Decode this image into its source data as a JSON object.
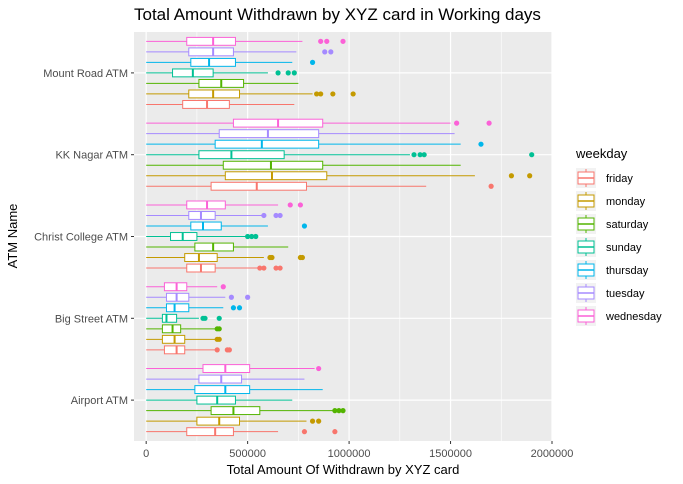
{
  "chart_data": {
    "type": "boxplot",
    "orientation": "horizontal",
    "title": "Total Amount Withdrawn by XYZ card in Working days",
    "xlabel": "Total Amount Of Withdrawn by XYZ card",
    "ylabel": "ATM Name",
    "xlim": [
      -60000,
      2000000
    ],
    "x_ticks": [
      0,
      500000,
      1000000,
      1500000,
      2000000
    ],
    "x_tick_labels": [
      "0",
      "500000",
      "1000000",
      "1500000",
      "2000000"
    ],
    "categories": [
      "Mount Road ATM",
      "KK Nagar ATM",
      "Christ College ATM",
      "Big Street ATM",
      "Airport ATM"
    ],
    "grid": true,
    "legend": {
      "title": "weekday",
      "position": "right"
    },
    "series": [
      {
        "name": "friday",
        "color": "#F8766D",
        "boxes": [
          {
            "category": "Mount Road ATM",
            "whisker_low": 0,
            "q1": 180000,
            "median": 300000,
            "q3": 410000,
            "whisker_high": 730000,
            "outliers": []
          },
          {
            "category": "KK Nagar ATM",
            "whisker_low": 0,
            "q1": 320000,
            "median": 545000,
            "q3": 790000,
            "whisker_high": 1380000,
            "outliers": [
              1700000
            ]
          },
          {
            "category": "Christ College ATM",
            "whisker_low": 0,
            "q1": 200000,
            "median": 270000,
            "q3": 340000,
            "whisker_high": 550000,
            "outliers": [
              560000,
              580000,
              640000,
              660000
            ]
          },
          {
            "category": "Big Street ATM",
            "whisker_low": 0,
            "q1": 90000,
            "median": 150000,
            "q3": 190000,
            "whisker_high": 340000,
            "outliers": [
              350000,
              400000,
              410000
            ]
          },
          {
            "category": "Airport ATM",
            "whisker_low": 0,
            "q1": 200000,
            "median": 340000,
            "q3": 430000,
            "whisker_high": 650000,
            "outliers": [
              780000,
              930000
            ]
          }
        ]
      },
      {
        "name": "monday",
        "color": "#C49A00",
        "boxes": [
          {
            "category": "Mount Road ATM",
            "whisker_low": 0,
            "q1": 210000,
            "median": 330000,
            "q3": 460000,
            "whisker_high": 820000,
            "outliers": [
              840000,
              860000,
              920000,
              1020000
            ]
          },
          {
            "category": "KK Nagar ATM",
            "whisker_low": 0,
            "q1": 390000,
            "median": 620000,
            "q3": 890000,
            "whisker_high": 1620000,
            "outliers": [
              1800000,
              1890000
            ]
          },
          {
            "category": "Christ College ATM",
            "whisker_low": 0,
            "q1": 190000,
            "median": 260000,
            "q3": 350000,
            "whisker_high": 580000,
            "outliers": [
              610000,
              620000,
              760000,
              770000
            ]
          },
          {
            "category": "Big Street ATM",
            "whisker_low": 0,
            "q1": 80000,
            "median": 140000,
            "q3": 190000,
            "whisker_high": 340000,
            "outliers": [
              350000,
              360000
            ]
          },
          {
            "category": "Airport ATM",
            "whisker_low": 0,
            "q1": 250000,
            "median": 360000,
            "q3": 460000,
            "whisker_high": 790000,
            "outliers": [
              820000,
              850000
            ]
          }
        ]
      },
      {
        "name": "saturday",
        "color": "#53B400",
        "boxes": [
          {
            "category": "Mount Road ATM",
            "whisker_low": 0,
            "q1": 260000,
            "median": 370000,
            "q3": 480000,
            "whisker_high": 750000,
            "outliers": []
          },
          {
            "category": "KK Nagar ATM",
            "whisker_low": 0,
            "q1": 380000,
            "median": 615000,
            "q3": 870000,
            "whisker_high": 1550000,
            "outliers": []
          },
          {
            "category": "Christ College ATM",
            "whisker_low": 0,
            "q1": 240000,
            "median": 330000,
            "q3": 430000,
            "whisker_high": 700000,
            "outliers": []
          },
          {
            "category": "Big Street ATM",
            "whisker_low": 0,
            "q1": 80000,
            "median": 130000,
            "q3": 170000,
            "whisker_high": 340000,
            "outliers": [
              350000,
              360000
            ]
          },
          {
            "category": "Airport ATM",
            "whisker_low": 0,
            "q1": 320000,
            "median": 430000,
            "q3": 560000,
            "whisker_high": 920000,
            "outliers": [
              930000,
              950000,
              970000
            ]
          }
        ]
      },
      {
        "name": "sunday",
        "color": "#00C094",
        "boxes": [
          {
            "category": "Mount Road ATM",
            "whisker_low": 0,
            "q1": 130000,
            "median": 230000,
            "q3": 330000,
            "whisker_high": 600000,
            "outliers": [
              650000,
              700000,
              730000
            ]
          },
          {
            "category": "KK Nagar ATM",
            "whisker_low": 0,
            "q1": 260000,
            "median": 420000,
            "q3": 680000,
            "whisker_high": 1300000,
            "outliers": [
              1320000,
              1350000,
              1370000,
              1900000
            ]
          },
          {
            "category": "Christ College ATM",
            "whisker_low": 0,
            "q1": 120000,
            "median": 180000,
            "q3": 250000,
            "whisker_high": 490000,
            "outliers": [
              500000,
              520000,
              540000
            ]
          },
          {
            "category": "Big Street ATM",
            "whisker_low": 0,
            "q1": 80000,
            "median": 100000,
            "q3": 150000,
            "whisker_high": 260000,
            "outliers": [
              280000,
              290000,
              360000
            ]
          },
          {
            "category": "Airport ATM",
            "whisker_low": 0,
            "q1": 250000,
            "median": 350000,
            "q3": 440000,
            "whisker_high": 720000,
            "outliers": []
          }
        ]
      },
      {
        "name": "thursday",
        "color": "#00B6EB",
        "boxes": [
          {
            "category": "Mount Road ATM",
            "whisker_low": 0,
            "q1": 220000,
            "median": 310000,
            "q3": 440000,
            "whisker_high": 720000,
            "outliers": [
              820000
            ]
          },
          {
            "category": "KK Nagar ATM",
            "whisker_low": 0,
            "q1": 340000,
            "median": 570000,
            "q3": 850000,
            "whisker_high": 1550000,
            "outliers": [
              1650000
            ]
          },
          {
            "category": "Christ College ATM",
            "whisker_low": 0,
            "q1": 220000,
            "median": 280000,
            "q3": 370000,
            "whisker_high": 600000,
            "outliers": [
              780000
            ]
          },
          {
            "category": "Big Street ATM",
            "whisker_low": 0,
            "q1": 100000,
            "median": 140000,
            "q3": 210000,
            "whisker_high": 380000,
            "outliers": [
              430000,
              460000
            ]
          },
          {
            "category": "Airport ATM",
            "whisker_low": 0,
            "q1": 240000,
            "median": 390000,
            "q3": 510000,
            "whisker_high": 870000,
            "outliers": []
          }
        ]
      },
      {
        "name": "tuesday",
        "color": "#A58AFF",
        "boxes": [
          {
            "category": "Mount Road ATM",
            "whisker_low": 0,
            "q1": 210000,
            "median": 330000,
            "q3": 430000,
            "whisker_high": 740000,
            "outliers": [
              880000,
              910000
            ]
          },
          {
            "category": "KK Nagar ATM",
            "whisker_low": 0,
            "q1": 360000,
            "median": 600000,
            "q3": 850000,
            "whisker_high": 1520000,
            "outliers": []
          },
          {
            "category": "Christ College ATM",
            "whisker_low": 0,
            "q1": 210000,
            "median": 270000,
            "q3": 340000,
            "whisker_high": 570000,
            "outliers": [
              580000,
              640000,
              660000
            ]
          },
          {
            "category": "Big Street ATM",
            "whisker_low": 0,
            "q1": 100000,
            "median": 150000,
            "q3": 210000,
            "whisker_high": 390000,
            "outliers": [
              420000,
              500000
            ]
          },
          {
            "category": "Airport ATM",
            "whisker_low": 0,
            "q1": 260000,
            "median": 370000,
            "q3": 470000,
            "whisker_high": 780000,
            "outliers": []
          }
        ]
      },
      {
        "name": "wednesday",
        "color": "#FB61D7",
        "boxes": [
          {
            "category": "Mount Road ATM",
            "whisker_low": 0,
            "q1": 200000,
            "median": 330000,
            "q3": 440000,
            "whisker_high": 770000,
            "outliers": [
              860000,
              890000,
              970000
            ]
          },
          {
            "category": "KK Nagar ATM",
            "whisker_low": 0,
            "q1": 430000,
            "median": 650000,
            "q3": 870000,
            "whisker_high": 1500000,
            "outliers": [
              1530000,
              1690000
            ]
          },
          {
            "category": "Christ College ATM",
            "whisker_low": 0,
            "q1": 200000,
            "median": 300000,
            "q3": 390000,
            "whisker_high": 650000,
            "outliers": [
              710000,
              760000
            ]
          },
          {
            "category": "Big Street ATM",
            "whisker_low": 0,
            "q1": 90000,
            "median": 150000,
            "q3": 200000,
            "whisker_high": 350000,
            "outliers": [
              380000
            ]
          },
          {
            "category": "Airport ATM",
            "whisker_low": 0,
            "q1": 280000,
            "median": 390000,
            "q3": 510000,
            "whisker_high": 830000,
            "outliers": [
              850000
            ]
          }
        ]
      }
    ]
  }
}
